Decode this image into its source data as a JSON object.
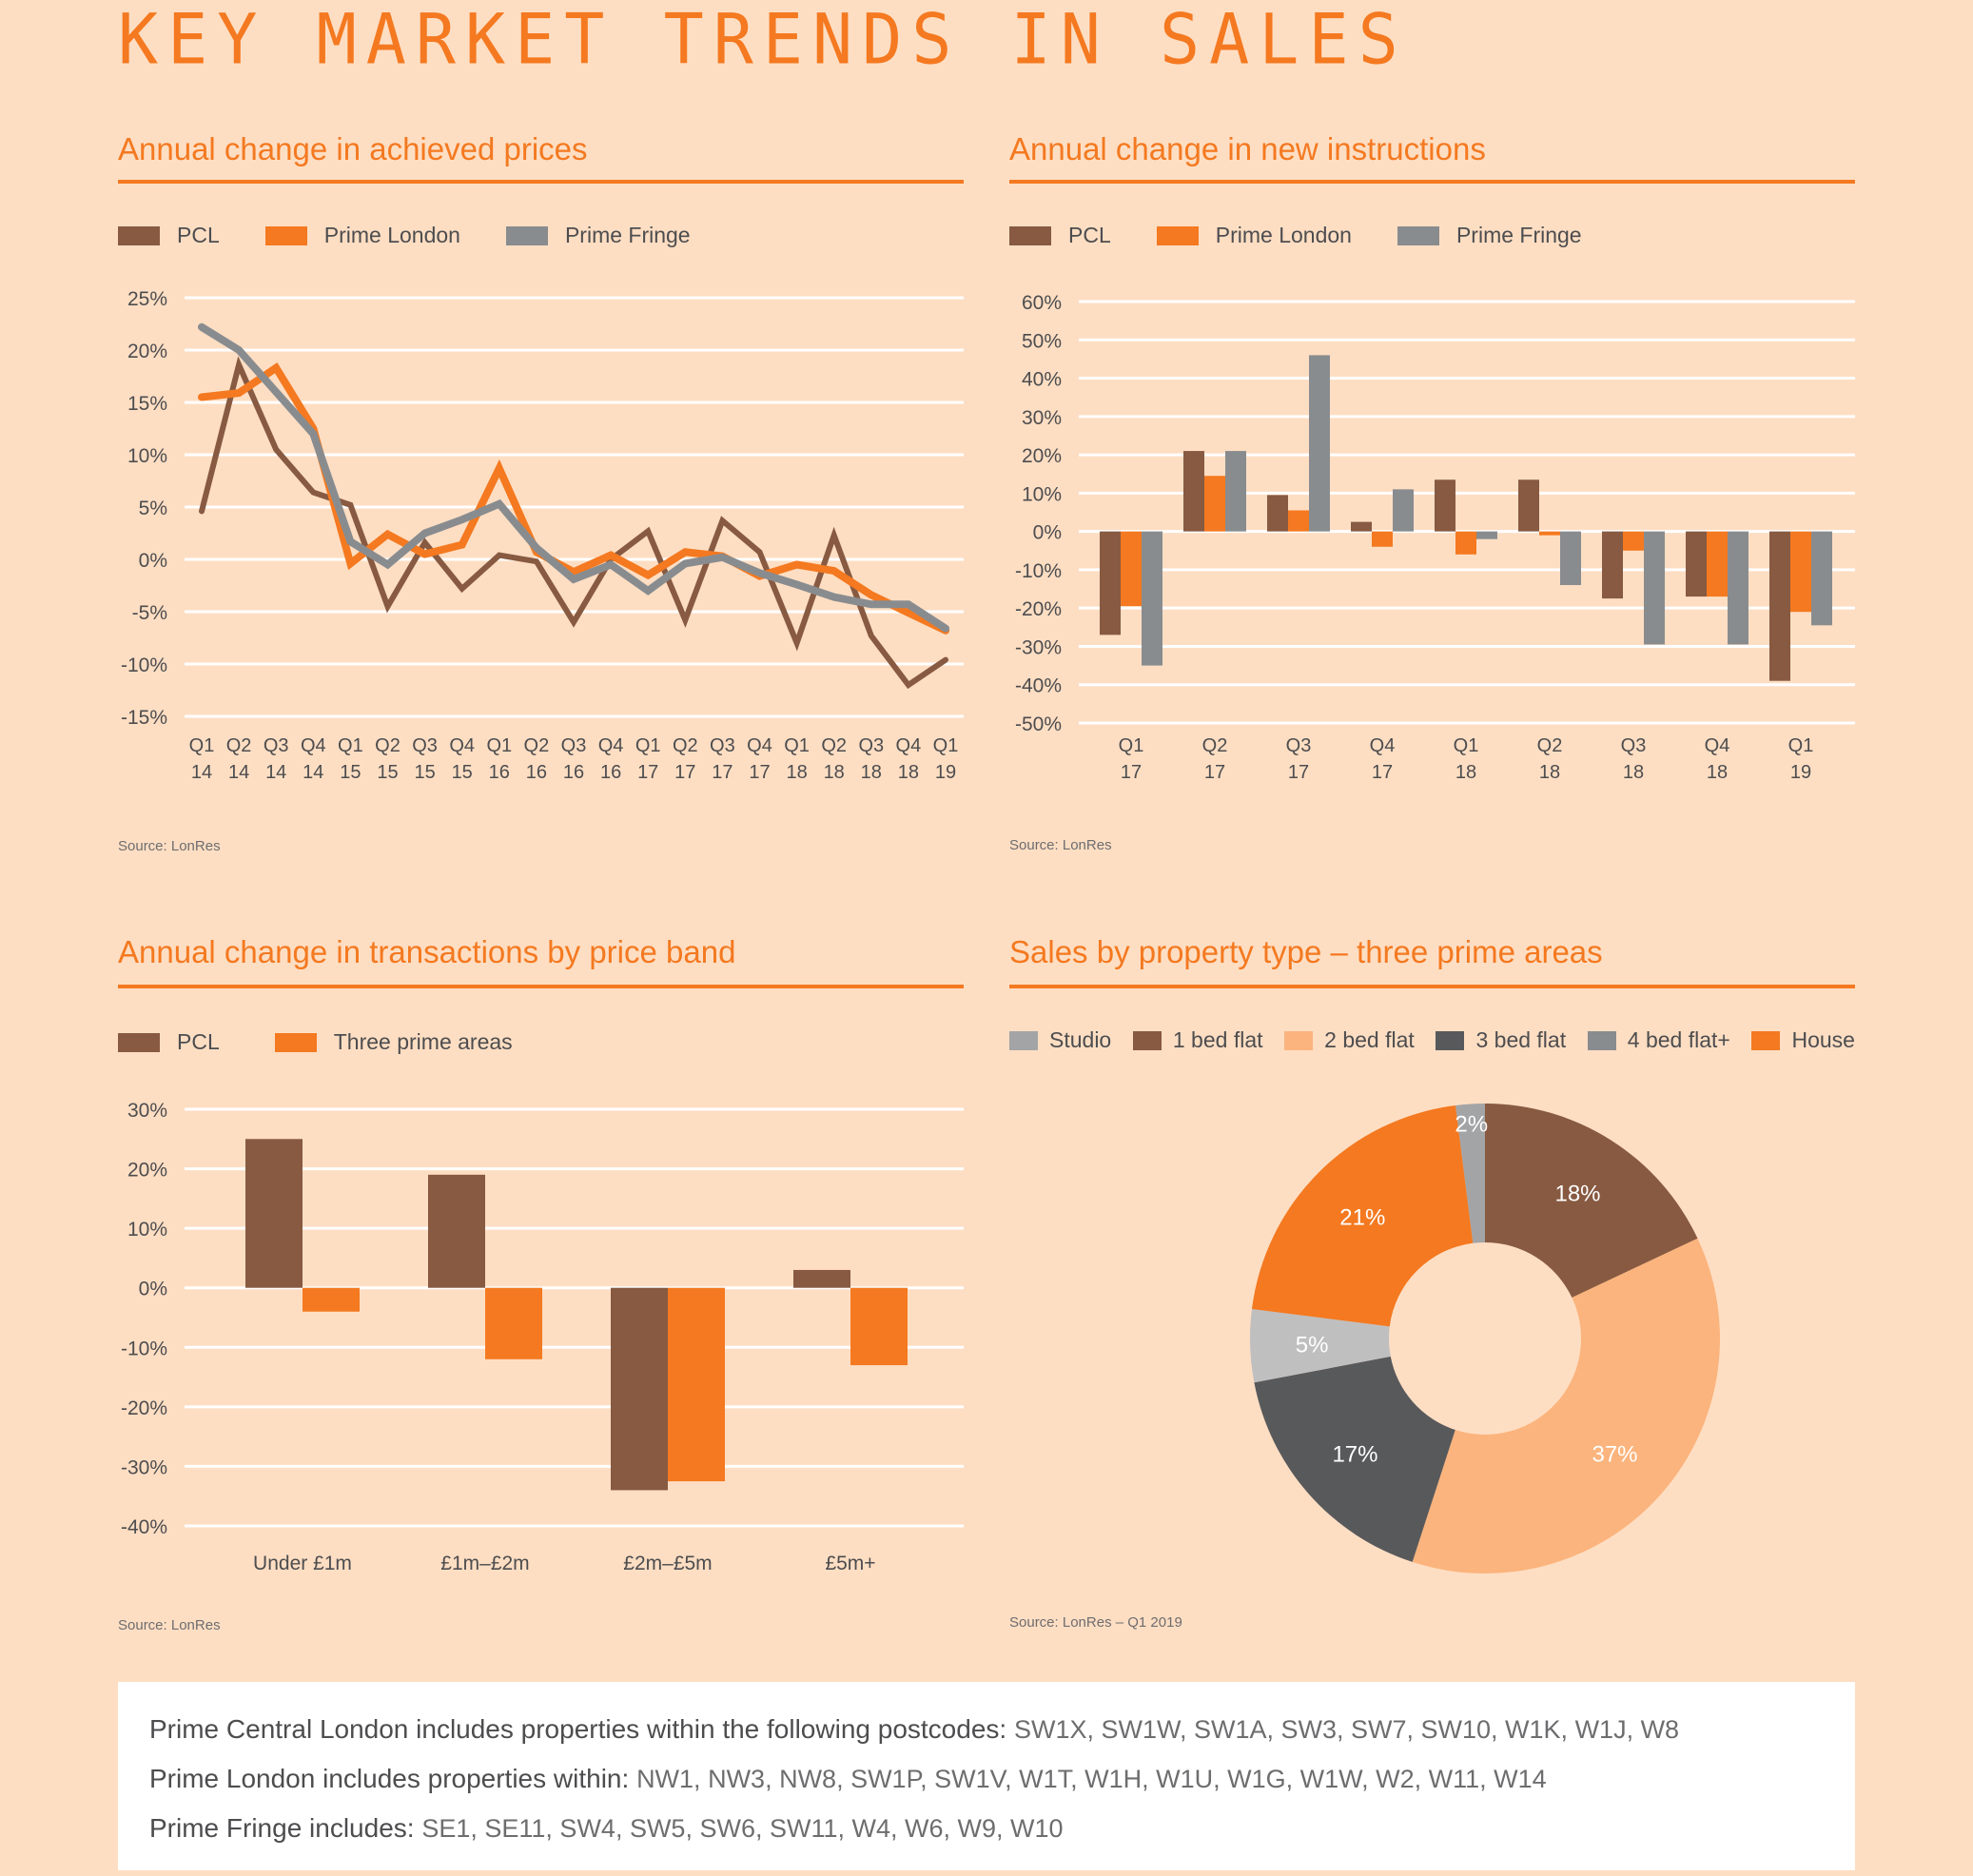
{
  "page": {
    "title": "KEY MARKET TRENDS IN SALES"
  },
  "colors": {
    "accent": "#f47920",
    "pcl": "#875a41",
    "prime_london": "#f47920",
    "prime_fringe": "#898c8f",
    "grid": "#ffffff",
    "background": "#fedec3"
  },
  "panels": {
    "prices": {
      "title": "Annual change in achieved prices",
      "source": "Source: LonRes"
    },
    "instructions": {
      "title": "Annual change in new instructions",
      "source": "Source: LonRes"
    },
    "transactions": {
      "title": "Annual change in transactions by price band",
      "source": "Source: LonRes"
    },
    "property_type": {
      "title": "Sales by property type – three prime areas",
      "source": "Source: LonRes – Q1 2019"
    }
  },
  "chart_data": [
    {
      "id": "achieved_prices",
      "type": "line",
      "title": "Annual change in achieved prices",
      "xlabel": "",
      "ylabel": "",
      "categories": [
        "Q1 14",
        "Q2 14",
        "Q3 14",
        "Q4 14",
        "Q1 15",
        "Q2 15",
        "Q3 15",
        "Q4 15",
        "Q1 16",
        "Q2 16",
        "Q3 16",
        "Q4 16",
        "Q1 17",
        "Q2 17",
        "Q3 17",
        "Q4 17",
        "Q1 18",
        "Q2 18",
        "Q3 18",
        "Q4 18",
        "Q1 19"
      ],
      "category_lines": [
        [
          "Q1",
          "14"
        ],
        [
          "Q2",
          "14"
        ],
        [
          "Q3",
          "14"
        ],
        [
          "Q4",
          "14"
        ],
        [
          "Q1",
          "15"
        ],
        [
          "Q2",
          "15"
        ],
        [
          "Q3",
          "15"
        ],
        [
          "Q4",
          "15"
        ],
        [
          "Q1",
          "16"
        ],
        [
          "Q2",
          "16"
        ],
        [
          "Q3",
          "16"
        ],
        [
          "Q4",
          "16"
        ],
        [
          "Q1",
          "17"
        ],
        [
          "Q2",
          "17"
        ],
        [
          "Q3",
          "17"
        ],
        [
          "Q4",
          "17"
        ],
        [
          "Q1",
          "18"
        ],
        [
          "Q2",
          "18"
        ],
        [
          "Q3",
          "18"
        ],
        [
          "Q4",
          "18"
        ],
        [
          "Q1",
          "19"
        ]
      ],
      "series": [
        {
          "name": "PCL",
          "color": "#875a41",
          "values": [
            4.6,
            18.6,
            10.5,
            6.4,
            5.2,
            -4.5,
            1.6,
            -2.8,
            0.4,
            -0.2,
            -6.0,
            0.0,
            2.7,
            -5.8,
            3.7,
            0.7,
            -8.0,
            2.3,
            -7.3,
            -12.0,
            -9.6
          ]
        },
        {
          "name": "Prime London",
          "color": "#f47920",
          "values": [
            15.5,
            15.9,
            18.3,
            12.5,
            -0.4,
            2.4,
            0.5,
            1.4,
            8.7,
            0.7,
            -1.2,
            0.4,
            -1.5,
            0.7,
            0.3,
            -1.6,
            -0.5,
            -1.1,
            -3.4,
            -5.1,
            -6.8
          ]
        },
        {
          "name": "Prime Fringe",
          "color": "#898c8f",
          "values": [
            22.2,
            20.0,
            16.0,
            12.0,
            1.7,
            -0.5,
            2.5,
            3.8,
            5.3,
            1.1,
            -1.9,
            -0.5,
            -3.0,
            -0.4,
            0.2,
            -1.3,
            -2.4,
            -3.6,
            -4.3,
            -4.3,
            -6.6
          ]
        }
      ],
      "yticks": [
        25,
        20,
        15,
        10,
        5,
        0,
        -5,
        -10,
        -15
      ],
      "ytick_labels": [
        "25%",
        "20%",
        "15%",
        "10%",
        "5%",
        "0%",
        "-5%",
        "-10%",
        "-15%"
      ],
      "ylim": [
        -15,
        25
      ],
      "grid": true,
      "legend": "top-left"
    },
    {
      "id": "new_instructions",
      "type": "bar",
      "title": "Annual change in new instructions",
      "xlabel": "",
      "ylabel": "",
      "categories": [
        "Q1 17",
        "Q2 17",
        "Q3 17",
        "Q4 17",
        "Q1 18",
        "Q2 18",
        "Q3 18",
        "Q4 18",
        "Q1 19"
      ],
      "category_lines": [
        [
          "Q1",
          "17"
        ],
        [
          "Q2",
          "17"
        ],
        [
          "Q3",
          "17"
        ],
        [
          "Q4",
          "17"
        ],
        [
          "Q1",
          "18"
        ],
        [
          "Q2",
          "18"
        ],
        [
          "Q3",
          "18"
        ],
        [
          "Q4",
          "18"
        ],
        [
          "Q1",
          "19"
        ]
      ],
      "series": [
        {
          "name": "PCL",
          "color": "#875a41",
          "values": [
            -27,
            21,
            9.5,
            2.5,
            13.5,
            13.5,
            -17.5,
            -17,
            -39
          ]
        },
        {
          "name": "Prime London",
          "color": "#f47920",
          "values": [
            -19.5,
            14.5,
            5.5,
            -4,
            -6,
            -1,
            -5,
            -17,
            -21
          ]
        },
        {
          "name": "Prime Fringe",
          "color": "#898c8f",
          "values": [
            -35,
            21,
            46,
            11,
            -2,
            -14,
            -29.5,
            -29.5,
            -24.5
          ]
        }
      ],
      "yticks": [
        60,
        50,
        40,
        30,
        20,
        10,
        0,
        -10,
        -20,
        -30,
        -40,
        -50
      ],
      "ytick_labels": [
        "60%",
        "50%",
        "40%",
        "30%",
        "20%",
        "10%",
        "0%",
        "-10%",
        "-20%",
        "-30%",
        "-40%",
        "-50%"
      ],
      "ylim": [
        -50,
        60
      ],
      "grid": true,
      "legend": "top-left"
    },
    {
      "id": "transactions_by_band",
      "type": "bar",
      "title": "Annual change in transactions by price band",
      "xlabel": "",
      "ylabel": "",
      "categories": [
        "Under £1m",
        "£1m–£2m",
        "£2m–£5m",
        "£5m+"
      ],
      "series": [
        {
          "name": "PCL",
          "color": "#875a41",
          "values": [
            25,
            19,
            -34,
            3
          ]
        },
        {
          "name": "Three prime areas",
          "color": "#f47920",
          "values": [
            -4,
            -12,
            -32.5,
            -13
          ]
        }
      ],
      "yticks": [
        30,
        20,
        10,
        0,
        -10,
        -20,
        -30,
        -40
      ],
      "ytick_labels": [
        "30%",
        "20%",
        "10%",
        "0%",
        "-10%",
        "-20%",
        "-30%",
        "-40%"
      ],
      "ylim": [
        -40,
        30
      ],
      "grid": true,
      "legend": "top-left"
    },
    {
      "id": "property_type",
      "type": "pie",
      "donut": true,
      "title": "Sales by property type – three prime areas",
      "legend_entries": [
        {
          "name": "Studio",
          "color": "#a3a4a6"
        },
        {
          "name": "1 bed flat",
          "color": "#875a41"
        },
        {
          "name": "2 bed flat",
          "color": "#fbb47d"
        },
        {
          "name": "3 bed flat",
          "color": "#58595b"
        },
        {
          "name": "4 bed flat+",
          "color": "#898c8f"
        },
        {
          "name": "House",
          "color": "#f47920"
        }
      ],
      "slices": [
        {
          "name": "1 bed flat",
          "value": 18,
          "label": "18%",
          "color": "#875a41"
        },
        {
          "name": "2 bed flat",
          "value": 37,
          "label": "37%",
          "color": "#fbb47d"
        },
        {
          "name": "3 bed flat",
          "value": 17,
          "label": "17%",
          "color": "#58595b"
        },
        {
          "name": "4 bed flat+",
          "value": 5,
          "label": "5%",
          "color": "#bfbfc0"
        },
        {
          "name": "House",
          "value": 21,
          "label": "21%",
          "color": "#f47920"
        },
        {
          "name": "Studio",
          "value": 2,
          "label": "2%",
          "color": "#a3a4a6"
        }
      ],
      "start_angle": "12 o'clock, clockwise",
      "legend": "top"
    }
  ],
  "footer": {
    "lines": [
      {
        "label": "Prime Central London includes properties within the following postcodes:",
        "codes": "SW1X, SW1W, SW1A, SW3, SW7, SW10, W1K, W1J, W8"
      },
      {
        "label": "Prime London includes properties within:",
        "codes": "NW1, NW3, NW8, SW1P, SW1V, W1T, W1H, W1U, W1G, W1W, W2, W11, W14"
      },
      {
        "label": "Prime Fringe includes:",
        "codes": "SE1, SE11, SW4, SW5, SW6, SW11, W4, W6, W9, W10"
      }
    ]
  }
}
